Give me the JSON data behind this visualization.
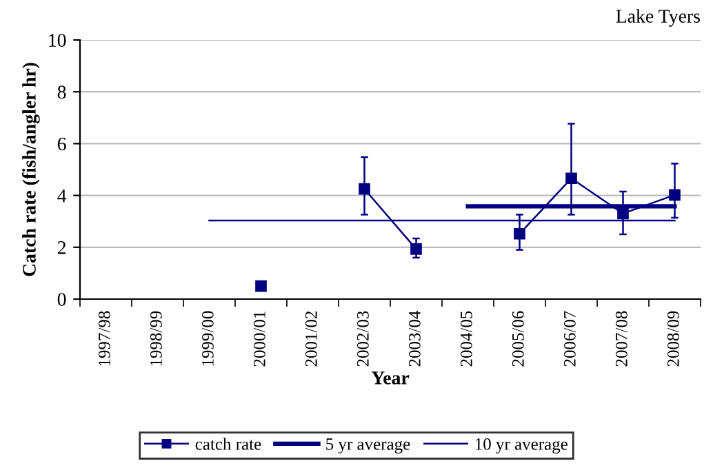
{
  "chart_data": {
    "type": "line",
    "title": "Lake Tyers",
    "xlabel": "Year",
    "ylabel": "Catch rate (fish/angler hr)",
    "categories": [
      "1997/98",
      "1998/99",
      "1999/00",
      "2000/01",
      "2001/02",
      "2002/03",
      "2003/04",
      "2004/05",
      "2005/06",
      "2006/07",
      "2007/08",
      "2008/09"
    ],
    "series": [
      {
        "name": "catch rate",
        "color": "#000080",
        "marker": "square",
        "values": [
          null,
          null,
          null,
          0.5,
          null,
          4.25,
          1.93,
          null,
          2.52,
          4.66,
          3.3,
          4.02
        ],
        "errors": [
          null,
          null,
          null,
          null,
          null,
          [
            3.26,
            5.48
          ],
          [
            1.6,
            2.34
          ],
          null,
          [
            1.9,
            3.26
          ],
          [
            3.26,
            6.77
          ],
          [
            2.5,
            4.15
          ],
          [
            3.14,
            5.23
          ]
        ]
      },
      {
        "name": "5 yr average",
        "color": "#000080",
        "marker": "none",
        "values": [
          null,
          null,
          null,
          null,
          null,
          null,
          null,
          3.58,
          3.58,
          3.58,
          3.58,
          3.58
        ]
      },
      {
        "name": "10 yr average",
        "color": "#000080",
        "marker": "none",
        "values": [
          null,
          null,
          3.03,
          3.03,
          3.03,
          3.03,
          3.03,
          3.03,
          3.03,
          3.03,
          3.03,
          3.03
        ]
      }
    ],
    "ylim": [
      0,
      10
    ],
    "yticks": [
      0,
      2,
      4,
      6,
      8,
      10
    ],
    "grid": "y",
    "legend": "bottom"
  }
}
